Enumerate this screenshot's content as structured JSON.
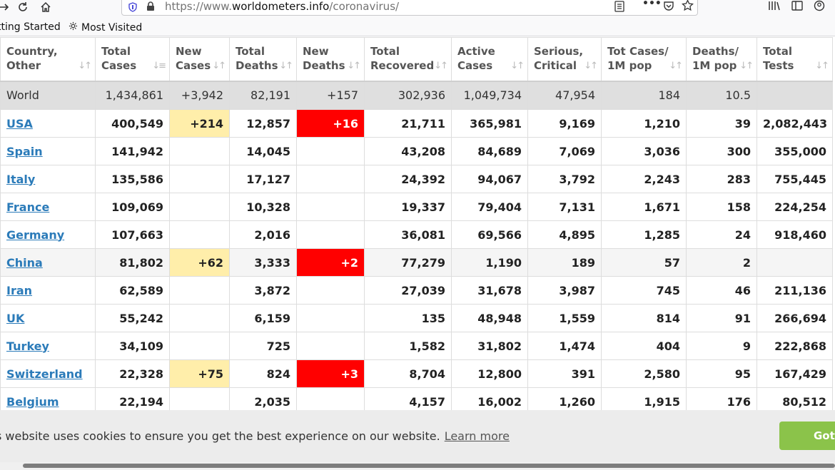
{
  "browser": {
    "url_prefix": "https://www.",
    "url_host": "worldometers.info",
    "url_path": "/coronavirus/",
    "bookmarks": [
      "tting Started",
      "Most Visited"
    ]
  },
  "table": {
    "headers": [
      {
        "line1": "Country,",
        "line2": "Other"
      },
      {
        "line1": "Total",
        "line2": "Cases"
      },
      {
        "line1": "New",
        "line2": "Cases"
      },
      {
        "line1": "Total",
        "line2": "Deaths"
      },
      {
        "line1": "New",
        "line2": "Deaths"
      },
      {
        "line1": "Total",
        "line2": "Recovered"
      },
      {
        "line1": "Active",
        "line2": "Cases"
      },
      {
        "line1": "Serious,",
        "line2": "Critical"
      },
      {
        "line1": "Tot Cases/",
        "line2": "1M pop"
      },
      {
        "line1": "Deaths/",
        "line2": "1M pop"
      },
      {
        "line1": "Total",
        "line2": "Tests"
      }
    ],
    "world": [
      "World",
      "1,434,861",
      "+3,942",
      "82,191",
      "+157",
      "302,936",
      "1,049,734",
      "47,954",
      "184",
      "10.5",
      ""
    ],
    "rows": [
      [
        "USA",
        "400,549",
        "+214",
        "12,857",
        "+16",
        "21,711",
        "365,981",
        "9,169",
        "1,210",
        "39",
        "2,082,443"
      ],
      [
        "Spain",
        "141,942",
        "",
        "14,045",
        "",
        "43,208",
        "84,689",
        "7,069",
        "3,036",
        "300",
        "355,000"
      ],
      [
        "Italy",
        "135,586",
        "",
        "17,127",
        "",
        "24,392",
        "94,067",
        "3,792",
        "2,243",
        "283",
        "755,445"
      ],
      [
        "France",
        "109,069",
        "",
        "10,328",
        "",
        "19,337",
        "79,404",
        "7,131",
        "1,671",
        "158",
        "224,254"
      ],
      [
        "Germany",
        "107,663",
        "",
        "2,016",
        "",
        "36,081",
        "69,566",
        "4,895",
        "1,285",
        "24",
        "918,460"
      ],
      [
        "China",
        "81,802",
        "+62",
        "3,333",
        "+2",
        "77,279",
        "1,190",
        "189",
        "57",
        "2",
        ""
      ],
      [
        "Iran",
        "62,589",
        "",
        "3,872",
        "",
        "27,039",
        "31,678",
        "3,987",
        "745",
        "46",
        "211,136"
      ],
      [
        "UK",
        "55,242",
        "",
        "6,159",
        "",
        "135",
        "48,948",
        "1,559",
        "814",
        "91",
        "266,694"
      ],
      [
        "Turkey",
        "34,109",
        "",
        "725",
        "",
        "1,582",
        "31,802",
        "1,474",
        "404",
        "9",
        "222,868"
      ],
      [
        "Switzerland",
        "22,328",
        "+75",
        "824",
        "+3",
        "8,704",
        "12,800",
        "391",
        "2,580",
        "95",
        "167,429"
      ],
      [
        "Belgium",
        "22,194",
        "",
        "2,035",
        "",
        "4,157",
        "16,002",
        "1,260",
        "1,915",
        "176",
        "80,512"
      ]
    ]
  },
  "cookie": {
    "message": "s website uses cookies to ensure you get the best experience on our website.",
    "learn_more": "Learn more",
    "button": "Got"
  }
}
